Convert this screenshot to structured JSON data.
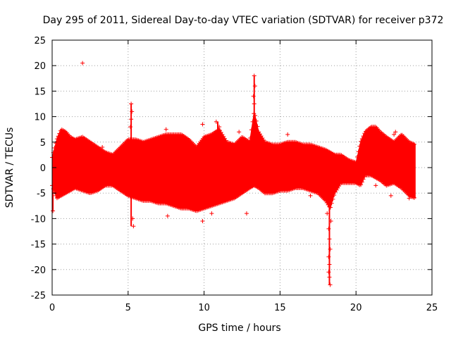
{
  "chart_data": {
    "type": "scatter",
    "title": "Day 295 of 2011, Sidereal Day-to-day VTEC variation (SDTVAR) for receiver p372",
    "xlabel": "GPS time / hours",
    "ylabel": "SDTVAR / TECUs",
    "xlim": [
      0,
      25
    ],
    "ylim": [
      -25,
      25
    ],
    "x_ticks": [
      0,
      5,
      10,
      15,
      20,
      25
    ],
    "y_ticks": [
      -25,
      -20,
      -15,
      -10,
      -5,
      0,
      5,
      10,
      15,
      20,
      25
    ],
    "x_tick_labels": [
      "0",
      "5",
      "10",
      "15",
      "20",
      "25"
    ],
    "y_tick_labels": [
      "-25",
      "-20",
      "-15",
      "-10",
      "-5",
      "0",
      "5",
      "10",
      "15",
      "20",
      "25"
    ],
    "grid": true,
    "marker": "+",
    "series_color": "#ff0000",
    "series": [
      {
        "name": "SDTVAR",
        "envelope_x": [
          0.0,
          0.3,
          0.6,
          0.9,
          1.2,
          1.5,
          2.0,
          2.5,
          3.0,
          3.5,
          4.0,
          4.5,
          5.0,
          5.5,
          6.0,
          6.5,
          7.0,
          7.5,
          8.0,
          8.5,
          9.0,
          9.5,
          10.0,
          10.5,
          11.0,
          11.5,
          12.0,
          12.5,
          13.0,
          13.3,
          13.6,
          14.0,
          14.5,
          15.0,
          15.5,
          16.0,
          16.5,
          17.0,
          17.5,
          18.0,
          18.3,
          18.6,
          19.0,
          19.5,
          20.0,
          20.3,
          20.6,
          21.0,
          21.3,
          21.6,
          22.0,
          22.5,
          23.0,
          23.5,
          23.9
        ],
        "envelope_upper": [
          2.0,
          5.5,
          7.5,
          7.0,
          6.0,
          5.5,
          6.0,
          5.0,
          4.0,
          3.0,
          2.5,
          4.0,
          5.5,
          5.5,
          5.0,
          5.5,
          6.0,
          6.5,
          6.5,
          6.5,
          5.5,
          4.0,
          6.0,
          6.5,
          7.5,
          5.0,
          4.5,
          6.0,
          5.0,
          11.0,
          7.0,
          5.0,
          4.5,
          4.5,
          5.0,
          5.0,
          4.5,
          4.5,
          4.0,
          3.5,
          3.0,
          2.5,
          2.5,
          1.5,
          1.0,
          5.0,
          7.0,
          8.0,
          8.0,
          7.0,
          6.0,
          5.0,
          6.5,
          5.0,
          4.5
        ],
        "envelope_lower": [
          -3.5,
          -6.0,
          -5.5,
          -5.0,
          -4.5,
          -4.0,
          -4.5,
          -5.0,
          -4.5,
          -3.5,
          -3.5,
          -4.5,
          -5.5,
          -6.0,
          -6.5,
          -6.5,
          -7.0,
          -7.0,
          -7.5,
          -8.0,
          -8.0,
          -8.5,
          -8.0,
          -7.5,
          -7.0,
          -6.5,
          -6.0,
          -5.0,
          -4.0,
          -3.5,
          -4.0,
          -5.0,
          -5.0,
          -4.5,
          -4.5,
          -4.0,
          -4.0,
          -4.5,
          -5.0,
          -6.5,
          -8.0,
          -5.0,
          -3.0,
          -3.0,
          -3.0,
          -3.5,
          -1.5,
          -1.5,
          -2.0,
          -2.5,
          -3.5,
          -3.0,
          -4.0,
          -5.5,
          -6.0
        ],
        "outliers": [
          {
            "x": 2.0,
            "y": 20.5
          },
          {
            "x": 13.3,
            "y": 18.0
          },
          {
            "x": 13.35,
            "y": 16.0
          },
          {
            "x": 13.25,
            "y": 14.0
          },
          {
            "x": 13.3,
            "y": 12.5
          },
          {
            "x": 5.2,
            "y": 12.5
          },
          {
            "x": 5.25,
            "y": 11.0
          },
          {
            "x": 5.2,
            "y": 9.5
          },
          {
            "x": 5.15,
            "y": 8.0
          },
          {
            "x": 10.8,
            "y": 9.0
          },
          {
            "x": 11.0,
            "y": 8.0
          },
          {
            "x": 9.9,
            "y": 8.5
          },
          {
            "x": 7.5,
            "y": 7.5
          },
          {
            "x": 12.3,
            "y": 7.0
          },
          {
            "x": 15.5,
            "y": 6.5
          },
          {
            "x": 22.5,
            "y": 6.5
          },
          {
            "x": 22.6,
            "y": 7.0
          },
          {
            "x": 3.3,
            "y": 4.0
          },
          {
            "x": 0.05,
            "y": -8.5
          },
          {
            "x": 5.3,
            "y": -10.0
          },
          {
            "x": 5.35,
            "y": -11.5
          },
          {
            "x": 7.6,
            "y": -9.5
          },
          {
            "x": 9.9,
            "y": -10.5
          },
          {
            "x": 10.5,
            "y": -9.0
          },
          {
            "x": 12.8,
            "y": -9.0
          },
          {
            "x": 18.2,
            "y": -12.0
          },
          {
            "x": 18.25,
            "y": -14.0
          },
          {
            "x": 18.3,
            "y": -16.0
          },
          {
            "x": 18.2,
            "y": -17.5
          },
          {
            "x": 18.25,
            "y": -19.0
          },
          {
            "x": 18.2,
            "y": -20.5
          },
          {
            "x": 18.25,
            "y": -21.5
          },
          {
            "x": 18.3,
            "y": -23.0
          },
          {
            "x": 18.35,
            "y": -10.5
          },
          {
            "x": 18.1,
            "y": -9.0
          },
          {
            "x": 17.0,
            "y": -5.5
          },
          {
            "x": 21.3,
            "y": -3.5
          },
          {
            "x": 22.3,
            "y": -5.5
          },
          {
            "x": 23.5,
            "y": -6.0
          }
        ]
      }
    ]
  }
}
